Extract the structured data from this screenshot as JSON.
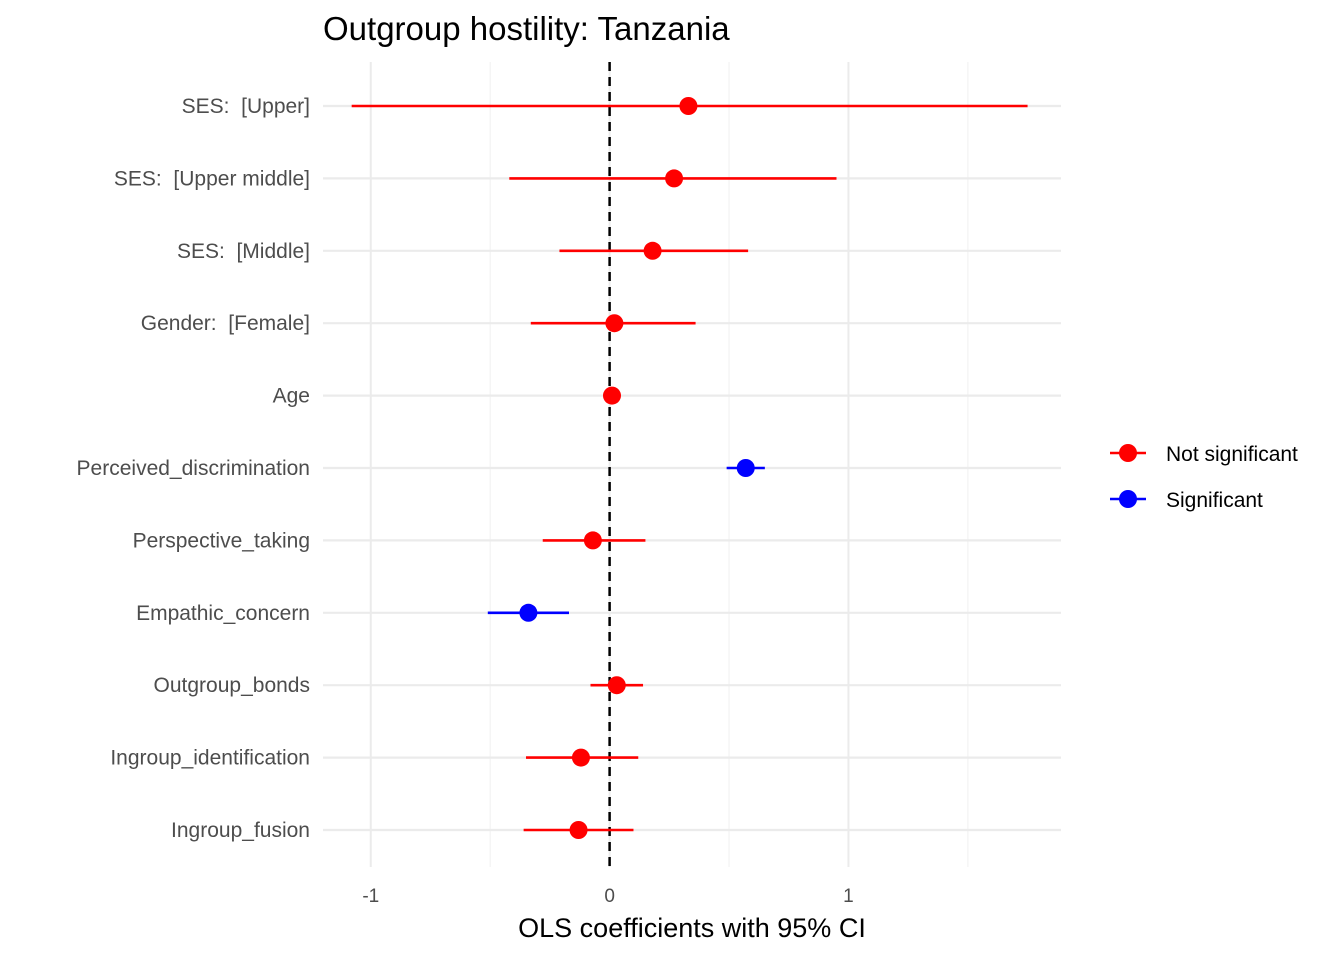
{
  "chart_data": {
    "type": "scatter",
    "subtype": "coefficient-plot-with-error-bars",
    "title": "Outgroup hostility: Tanzania",
    "xlabel": "OLS coefficients with 95% CI",
    "ylabel": "",
    "xlim": [
      -1.2,
      1.89
    ],
    "x_ticks": [
      -1,
      0,
      1
    ],
    "x_tick_labels": [
      "-1",
      "0",
      "1"
    ],
    "minor_x_gridlines": [
      -0.5,
      0.5,
      1.5
    ],
    "reference_line": {
      "x": 0,
      "style": "dashed",
      "color": "#000000"
    },
    "grid": true,
    "legend_position": "right",
    "colors": {
      "Not significant": "#ff0000",
      "Significant": "#0000ff"
    },
    "legend": [
      {
        "label": "Not significant",
        "color": "#ff0000"
      },
      {
        "label": "Significant",
        "color": "#0000ff"
      }
    ],
    "terms": [
      {
        "label": "SES:  [Upper]",
        "estimate": 0.33,
        "ci_low": -1.08,
        "ci_high": 1.75,
        "group": "Not significant"
      },
      {
        "label": "SES:  [Upper middle]",
        "estimate": 0.27,
        "ci_low": -0.42,
        "ci_high": 0.95,
        "group": "Not significant"
      },
      {
        "label": "SES:  [Middle]",
        "estimate": 0.18,
        "ci_low": -0.21,
        "ci_high": 0.58,
        "group": "Not significant"
      },
      {
        "label": "Gender:  [Female]",
        "estimate": 0.02,
        "ci_low": -0.33,
        "ci_high": 0.36,
        "group": "Not significant"
      },
      {
        "label": "Age",
        "estimate": 0.01,
        "ci_low": 0.0,
        "ci_high": 0.02,
        "group": "Not significant"
      },
      {
        "label": "Perceived_discrimination",
        "estimate": 0.57,
        "ci_low": 0.49,
        "ci_high": 0.65,
        "group": "Significant"
      },
      {
        "label": "Perspective_taking",
        "estimate": -0.07,
        "ci_low": -0.28,
        "ci_high": 0.15,
        "group": "Not significant"
      },
      {
        "label": "Empathic_concern",
        "estimate": -0.34,
        "ci_low": -0.51,
        "ci_high": -0.17,
        "group": "Significant"
      },
      {
        "label": "Outgroup_bonds",
        "estimate": 0.03,
        "ci_low": -0.08,
        "ci_high": 0.14,
        "group": "Not significant"
      },
      {
        "label": "Ingroup_identification",
        "estimate": -0.12,
        "ci_low": -0.35,
        "ci_high": 0.12,
        "group": "Not significant"
      },
      {
        "label": "Ingroup_fusion",
        "estimate": -0.13,
        "ci_low": -0.36,
        "ci_high": 0.1,
        "group": "Not significant"
      }
    ]
  }
}
